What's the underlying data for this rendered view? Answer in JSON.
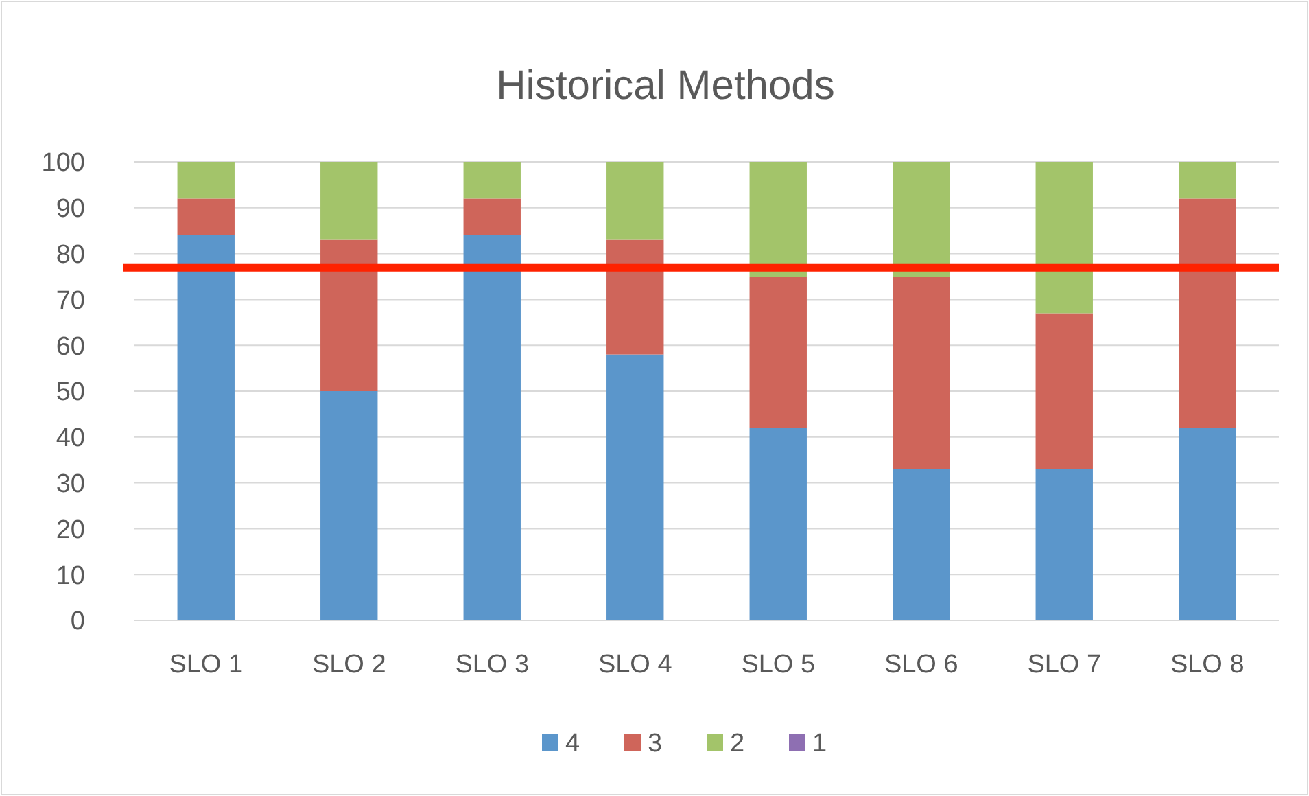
{
  "chart_data": {
    "type": "bar",
    "title": "Historical Methods",
    "stacked": true,
    "categories": [
      "SLO 1",
      "SLO 2",
      "SLO 3",
      "SLO 4",
      "SLO 5",
      "SLO 6",
      "SLO 7",
      "SLO 8"
    ],
    "series": [
      {
        "name": "4",
        "color": "#5b96cb",
        "values": [
          84,
          50,
          84,
          58,
          42,
          33,
          33,
          42
        ]
      },
      {
        "name": "3",
        "color": "#cf655a",
        "values": [
          8,
          33,
          8,
          25,
          33,
          42,
          34,
          50
        ]
      },
      {
        "name": "2",
        "color": "#a3c46a",
        "values": [
          8,
          17,
          8,
          17,
          25,
          25,
          33,
          8
        ]
      },
      {
        "name": "1",
        "color": "#8e6fb2",
        "values": [
          0,
          0,
          0,
          0,
          0,
          0,
          0,
          0
        ]
      }
    ],
    "ylim": [
      0,
      100
    ],
    "yticks": [
      0,
      10,
      20,
      30,
      40,
      50,
      60,
      70,
      80,
      90,
      100
    ],
    "grid": "y",
    "legend": "bottom",
    "ref_lines": [
      {
        "axis": "y",
        "value": 77,
        "color": "#ff2200"
      }
    ]
  }
}
